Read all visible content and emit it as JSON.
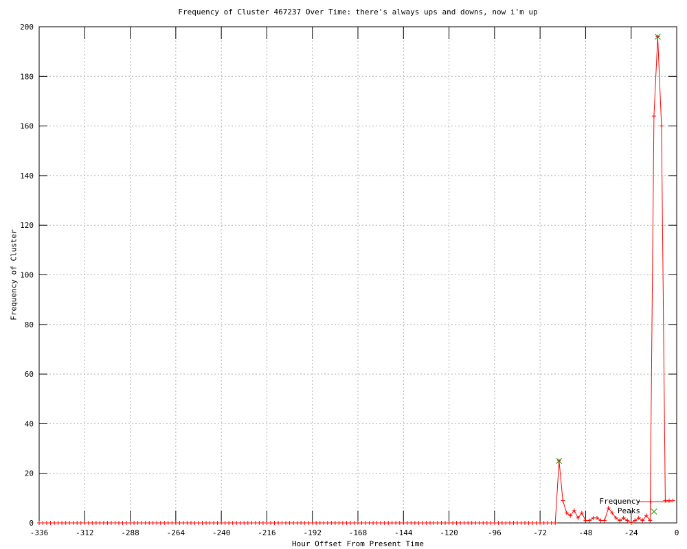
{
  "chart_data": {
    "type": "line",
    "title": "Frequency of Cluster 467237 Over Time: there's always ups and downs, now i'm up",
    "xlabel": "Hour Offset From Present Time",
    "ylabel": "Frequency of Cluster",
    "xlim": [
      -336,
      0
    ],
    "ylim": [
      0,
      200
    ],
    "xticks": [
      -336,
      -312,
      -288,
      -264,
      -240,
      -216,
      -192,
      -168,
      -144,
      -120,
      -96,
      -72,
      -48,
      -24,
      0
    ],
    "yticks": [
      0,
      20,
      40,
      60,
      80,
      100,
      120,
      140,
      160,
      180,
      200
    ],
    "grid": true,
    "legend_position": "inside bottom-right",
    "colors": {
      "series": "#ff0000",
      "peaks": "#00a000",
      "grid": "#b0b0b0",
      "axis": "#000000",
      "text": "#000000",
      "background": "#ffffff"
    },
    "series": [
      {
        "name": "Frequency",
        "style": "linespoints",
        "marker": "plus",
        "color": "#ff0000",
        "x_start": -336,
        "x_step": 2,
        "values": [
          0,
          0,
          0,
          0,
          0,
          0,
          0,
          0,
          0,
          0,
          0,
          0,
          0,
          0,
          0,
          0,
          0,
          0,
          0,
          0,
          0,
          0,
          0,
          0,
          0,
          0,
          0,
          0,
          0,
          0,
          0,
          0,
          0,
          0,
          0,
          0,
          0,
          0,
          0,
          0,
          0,
          0,
          0,
          0,
          0,
          0,
          0,
          0,
          0,
          0,
          0,
          0,
          0,
          0,
          0,
          0,
          0,
          0,
          0,
          0,
          0,
          0,
          0,
          0,
          0,
          0,
          0,
          0,
          0,
          0,
          0,
          0,
          0,
          0,
          0,
          0,
          0,
          0,
          0,
          0,
          0,
          0,
          0,
          0,
          0,
          0,
          0,
          0,
          0,
          0,
          0,
          0,
          0,
          0,
          0,
          0,
          0,
          0,
          0,
          0,
          0,
          0,
          0,
          0,
          0,
          0,
          0,
          0,
          0,
          0,
          0,
          0,
          0,
          0,
          0,
          0,
          0,
          0,
          0,
          0,
          0,
          0,
          0,
          0,
          0,
          0,
          0,
          0,
          0,
          0,
          0,
          0,
          0,
          0,
          0,
          0,
          0,
          25,
          9,
          4,
          3,
          5,
          2,
          4,
          1,
          1,
          2,
          2,
          1,
          1,
          6,
          4,
          2,
          1,
          2,
          1,
          0,
          1,
          2,
          1,
          3,
          1,
          164,
          196,
          160,
          9,
          9,
          9
        ]
      },
      {
        "name": "Peaks",
        "style": "points",
        "marker": "cross",
        "color": "#00a000",
        "points": [
          {
            "x": -62,
            "y": 25
          },
          {
            "x": -10,
            "y": 196
          }
        ]
      }
    ]
  }
}
